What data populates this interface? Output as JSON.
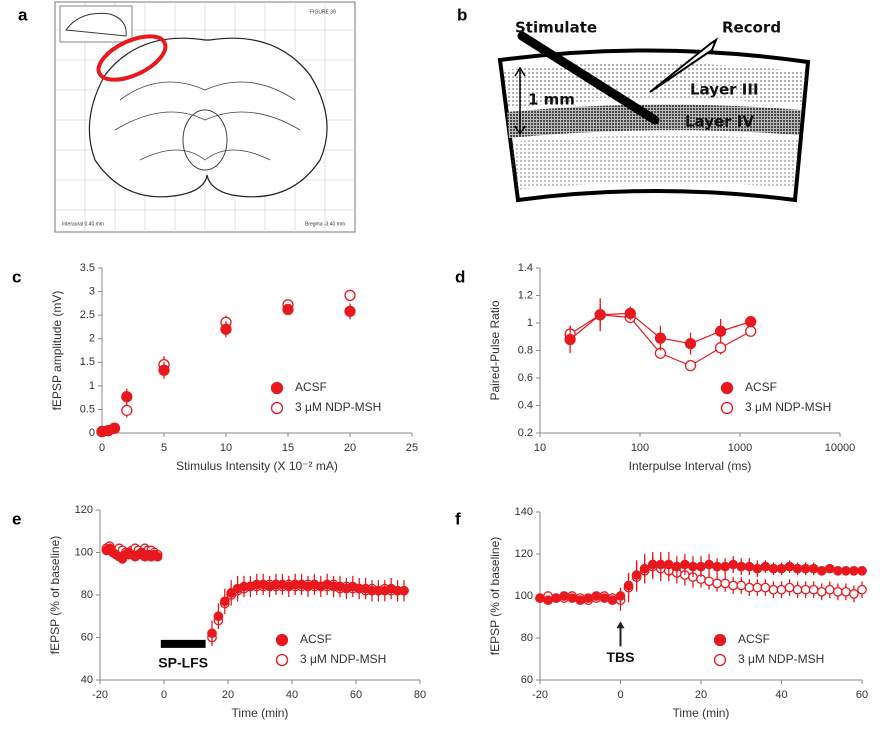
{
  "panel_labels": [
    "a",
    "b",
    "c",
    "d",
    "e",
    "f"
  ],
  "atlas": {
    "title": "FIGURE 39",
    "left_note": "Interaural 0.40 mm",
    "right_note": "Bregma -3.40 mm"
  },
  "schematic": {
    "stimulate": "Stimulate",
    "record": "Record",
    "scale": "1 mm",
    "layer3": "Layer III",
    "layer4": "Layer IV"
  },
  "chart_data": [
    {
      "type": "scatter",
      "xlabel": "Stimulus Intensity (X 10⁻² mA)",
      "ylabel": "fEPSP amplitude (mV)",
      "x": [
        0,
        0.5,
        1,
        2,
        5,
        10,
        15,
        20
      ],
      "series": [
        {
          "name": "ACSF",
          "color": "#e8191e",
          "marker": "filled",
          "values": [
            0.03,
            0.05,
            0.1,
            0.77,
            1.33,
            2.2,
            2.62,
            2.58
          ],
          "errors": [
            0.03,
            0.03,
            0.04,
            0.17,
            0.18,
            0.17,
            0.12,
            0.17
          ]
        },
        {
          "name": "3 μM NDP-MSH",
          "color": "#e8191e",
          "marker": "open",
          "values": [
            0.03,
            0.05,
            0.1,
            0.48,
            1.45,
            2.35,
            2.72,
            2.92
          ],
          "errors": [
            0.03,
            0.03,
            0.04,
            0.15,
            0.18,
            0.14,
            0.11,
            0.12
          ]
        }
      ],
      "xlim": [
        0,
        25
      ],
      "xticks": [
        0,
        5,
        10,
        15,
        20,
        25
      ],
      "ylim": [
        0,
        3.5
      ],
      "yticks": [
        0,
        0.5,
        1,
        1.5,
        2,
        2.5,
        3,
        3.5
      ],
      "legend": "lower right"
    },
    {
      "type": "line",
      "xlabel": "Interpulse Interval (ms)",
      "ylabel": "Paired-Pulse Ratio",
      "xscale": "log",
      "x": [
        20,
        40,
        80,
        160,
        320,
        640,
        1280
      ],
      "series": [
        {
          "name": "ACSF",
          "color": "#e8191e",
          "marker": "filled",
          "values": [
            0.88,
            1.06,
            1.07,
            0.89,
            0.85,
            0.94,
            1.01
          ],
          "errors": [
            0.1,
            0.12,
            0.05,
            0.09,
            0.08,
            0.09,
            0.04
          ]
        },
        {
          "name": "3 μM NDP-MSH",
          "color": "#e8191e",
          "marker": "open",
          "values": [
            0.92,
            1.06,
            1.04,
            0.78,
            0.69,
            0.82,
            0.94
          ],
          "errors": [
            0.06,
            0.08,
            0.04,
            0.04,
            0.03,
            0.05,
            0.03
          ]
        }
      ],
      "xlim": [
        10,
        10000
      ],
      "xticks": [
        10,
        100,
        1000,
        10000
      ],
      "ylim": [
        0.2,
        1.4
      ],
      "yticks": [
        0.2,
        0.4,
        0.6,
        0.8,
        1,
        1.2,
        1.4
      ],
      "legend": "lower right"
    },
    {
      "type": "scatter",
      "xlabel": "Time (min)",
      "ylabel": "fEPSP (% of baseline)",
      "x": [
        -18,
        -17,
        -16,
        -15,
        -14,
        -13,
        -12,
        -11,
        -10,
        -9,
        -8,
        -7,
        -6,
        -5,
        -4,
        -3,
        -2,
        15,
        17,
        19,
        21,
        23,
        25,
        27,
        29,
        31,
        33,
        35,
        37,
        39,
        41,
        43,
        45,
        47,
        49,
        51,
        53,
        55,
        57,
        59,
        61,
        63,
        65,
        67,
        69,
        71,
        73,
        75
      ],
      "series": [
        {
          "name": "ACSF",
          "color": "#e8191e",
          "marker": "filled",
          "values": [
            101,
            102,
            100,
            99,
            98,
            97,
            99,
            100,
            99,
            98,
            99,
            100,
            98,
            99,
            98,
            99,
            98,
            62,
            70,
            77,
            81,
            83,
            84,
            84,
            85,
            85,
            84,
            85,
            85,
            84,
            85,
            85,
            84,
            85,
            84,
            85,
            84,
            84,
            83,
            84,
            83,
            83,
            82,
            82,
            82,
            83,
            82,
            82
          ],
          "errors": [
            2,
            2,
            2,
            2,
            2,
            2,
            2,
            2,
            2,
            2,
            2,
            2,
            2,
            2,
            2,
            2,
            2,
            6,
            6,
            6,
            6,
            6,
            5,
            5,
            5,
            5,
            5,
            5,
            5,
            5,
            5,
            5,
            5,
            5,
            5,
            5,
            5,
            5,
            5,
            5,
            5,
            5,
            5,
            5,
            5,
            5,
            5,
            5
          ]
        },
        {
          "name": "3 μM NDP-MSH",
          "color": "#e8191e",
          "marker": "open",
          "values": [
            102,
            103,
            101,
            100,
            102,
            101,
            100,
            99,
            101,
            102,
            101,
            100,
            102,
            101,
            101,
            100,
            99,
            60,
            68,
            76,
            80,
            82,
            83,
            84,
            84,
            84,
            85,
            84,
            84,
            85,
            84,
            84,
            85,
            84,
            84,
            84,
            85,
            83,
            84,
            83,
            83,
            82,
            83,
            82,
            83,
            82,
            82,
            82
          ]
        }
      ],
      "xlim": [
        -20,
        80
      ],
      "xticks": [
        -20,
        0,
        20,
        40,
        60,
        80
      ],
      "ylim": [
        40,
        120
      ],
      "yticks": [
        40,
        60,
        80,
        100,
        120
      ],
      "legend": "lower right",
      "annotation": {
        "text": "SP-LFS",
        "x_start": -1,
        "x_end": 13,
        "y": 57
      }
    },
    {
      "type": "scatter",
      "xlabel": "Time (min)",
      "ylabel": "fEPSP (% of baseline)",
      "x": [
        -20,
        -18,
        -16,
        -14,
        -12,
        -10,
        -8,
        -6,
        -4,
        -2,
        0,
        2,
        4,
        6,
        8,
        10,
        12,
        14,
        16,
        18,
        20,
        22,
        24,
        26,
        28,
        30,
        32,
        34,
        36,
        38,
        40,
        42,
        44,
        46,
        48,
        50,
        52,
        54,
        56,
        58,
        60
      ],
      "series": [
        {
          "name": "ACSF",
          "color": "#e8191e",
          "marker": "filled",
          "values": [
            99,
            98,
            99,
            100,
            99,
            98,
            99,
            100,
            99,
            98,
            100,
            105,
            110,
            113,
            115,
            115,
            115,
            114,
            115,
            114,
            114,
            115,
            114,
            114,
            115,
            114,
            114,
            113,
            114,
            113,
            113,
            114,
            113,
            113,
            113,
            112,
            113,
            112,
            112,
            112,
            112
          ],
          "errors": [
            2,
            2,
            2,
            2,
            2,
            2,
            2,
            2,
            2,
            2,
            4,
            6,
            7,
            7,
            6,
            6,
            6,
            5,
            5,
            5,
            5,
            5,
            4,
            4,
            4,
            4,
            4,
            4,
            3,
            3,
            3,
            3,
            3,
            3,
            3,
            2,
            2,
            2,
            2,
            2,
            2
          ]
        },
        {
          "name": "3 μM NDP-MSH",
          "color": "#e8191e",
          "marker": "open",
          "values": [
            99,
            100,
            99,
            99,
            100,
            99,
            98,
            99,
            100,
            99,
            98,
            104,
            109,
            112,
            114,
            113,
            112,
            111,
            110,
            109,
            108,
            107,
            106,
            106,
            105,
            105,
            104,
            104,
            104,
            103,
            103,
            104,
            103,
            103,
            103,
            102,
            103,
            102,
            102,
            101,
            103
          ],
          "errors": [
            2,
            2,
            2,
            2,
            2,
            2,
            2,
            2,
            2,
            2,
            5,
            7,
            7,
            6,
            6,
            6,
            5,
            5,
            5,
            5,
            4,
            4,
            4,
            4,
            4,
            4,
            4,
            4,
            4,
            4,
            4,
            4,
            4,
            4,
            4,
            4,
            4,
            4,
            4,
            4,
            4
          ]
        }
      ],
      "xlim": [
        -20,
        60
      ],
      "xticks": [
        -20,
        0,
        20,
        40,
        60
      ],
      "ylim": [
        60,
        140
      ],
      "yticks": [
        60,
        80,
        100,
        120,
        140
      ],
      "legend": "lower right",
      "annotation": {
        "text": "TBS",
        "x": 0,
        "y_start": 76,
        "y_end": 88
      }
    }
  ]
}
